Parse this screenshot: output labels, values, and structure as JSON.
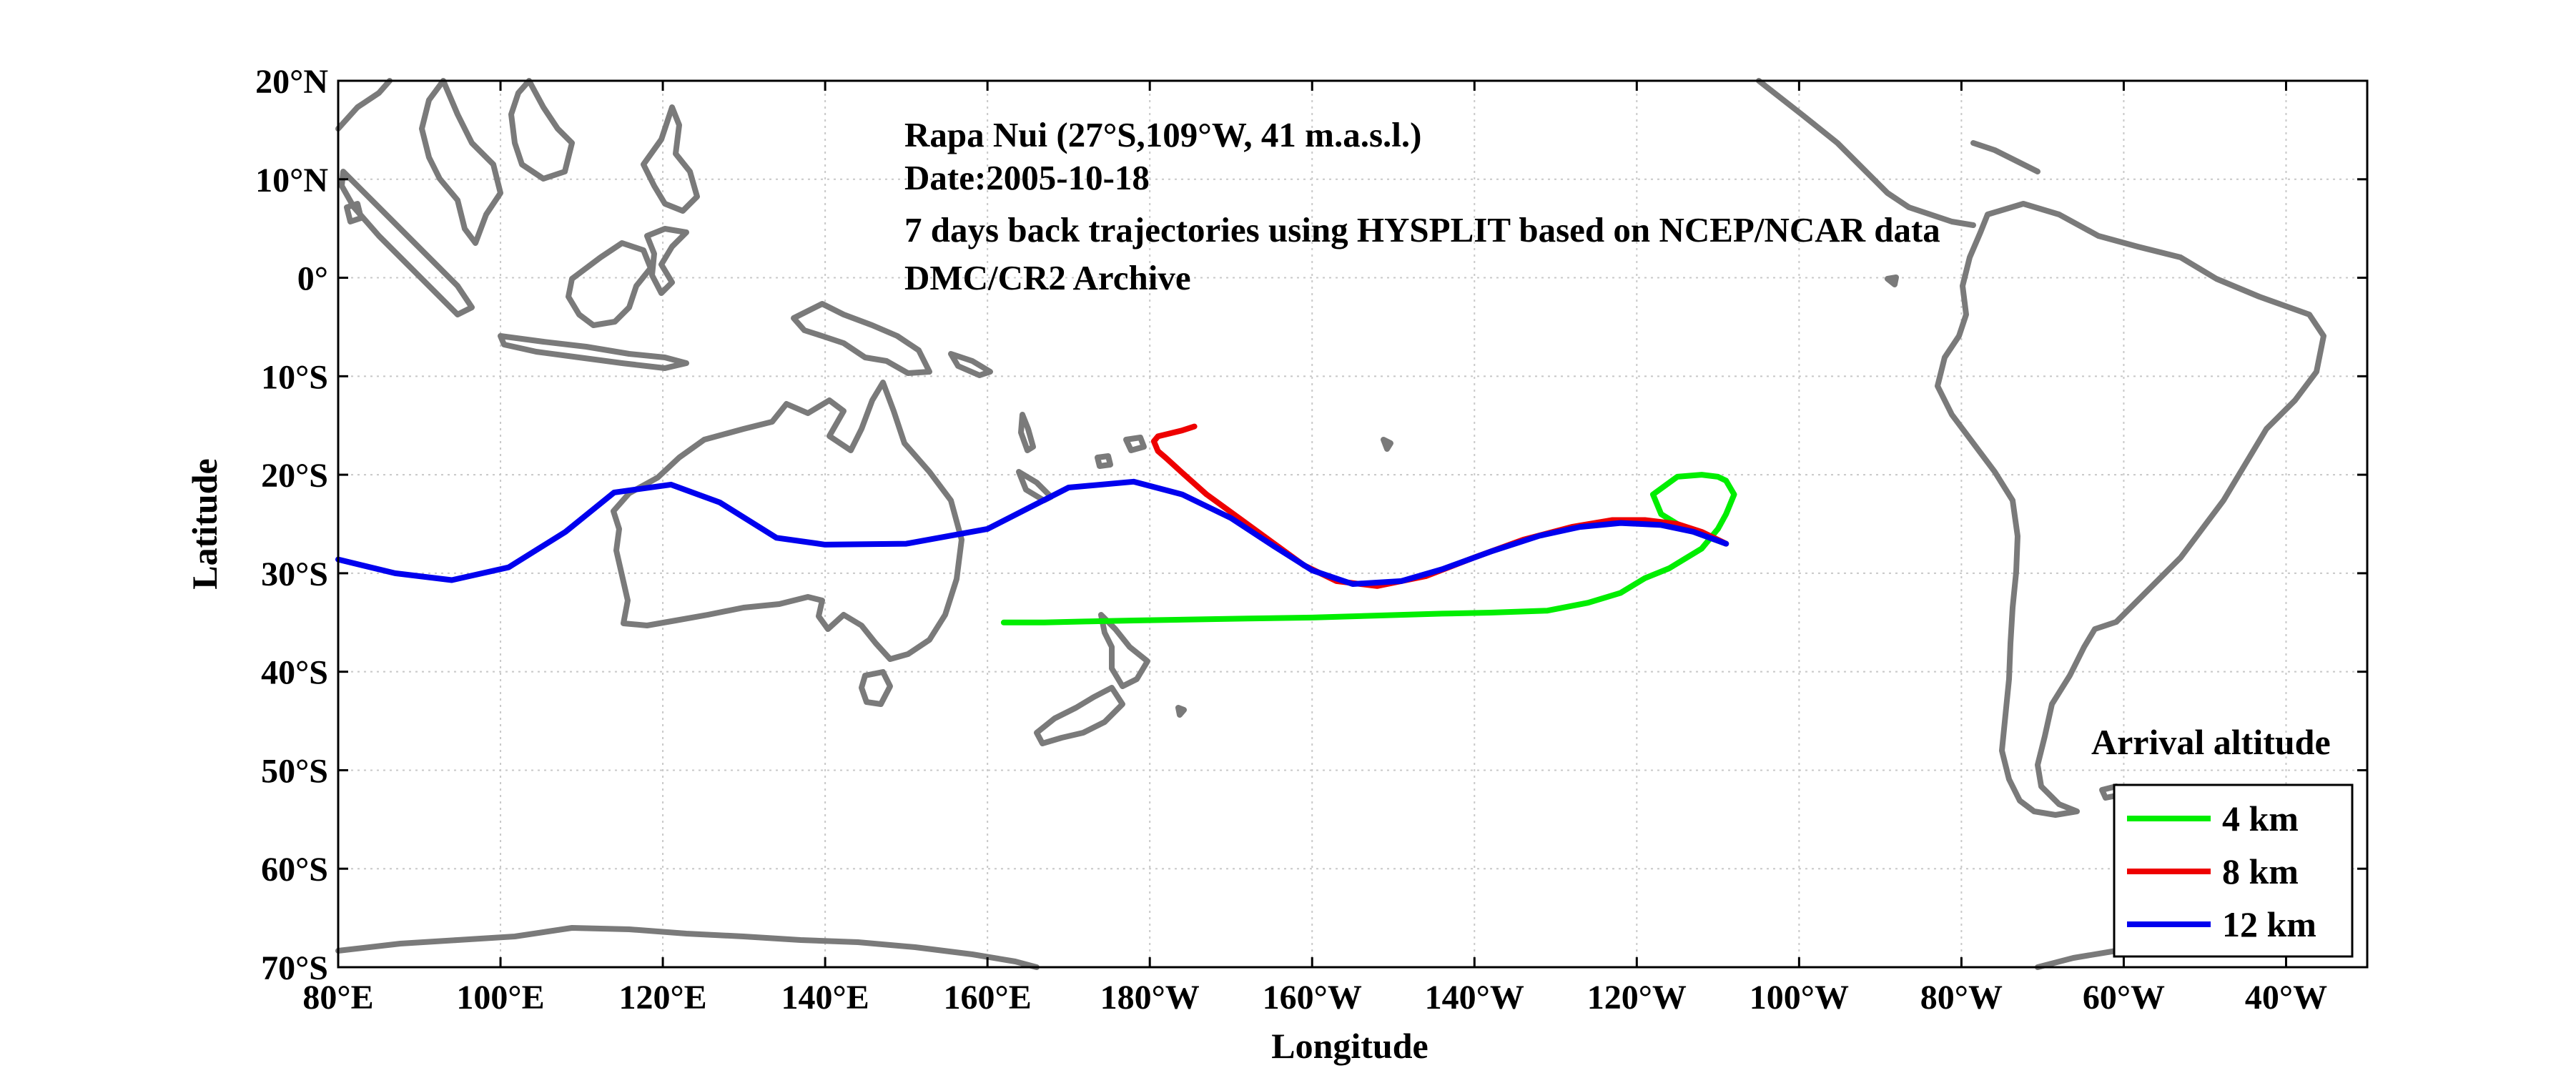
{
  "chart_data": {
    "type": "line",
    "title": "",
    "xlabel": "Longitude",
    "ylabel": "Latitude",
    "xlim": [
      80,
      330
    ],
    "ylim": [
      -70,
      20
    ],
    "grid": true,
    "x_tick_values": [
      80,
      100,
      120,
      140,
      160,
      180,
      200,
      220,
      240,
      260,
      280,
      300,
      320
    ],
    "x_tick_labels": [
      "80°E",
      "100°E",
      "120°E",
      "140°E",
      "160°E",
      "180°W",
      "160°W",
      "140°W",
      "120°W",
      "100°W",
      "80°W",
      "60°W",
      "40°W"
    ],
    "y_tick_values": [
      20,
      10,
      0,
      -10,
      -20,
      -30,
      -40,
      -50,
      -60,
      -70
    ],
    "y_tick_labels": [
      "20°N",
      "10°N",
      "0°",
      "10°S",
      "20°S",
      "30°S",
      "40°S",
      "50°S",
      "60°S",
      "70°S"
    ],
    "annotations": [
      "Rapa Nui (27°S,109°W, 41 m.a.s.l.)",
      "Date:2005-10-18",
      "7 days back trajectories using HYSPLIT based on NCEP/NCAR data",
      "DMC/CR2 Archive"
    ],
    "legend": {
      "title": "Arrival altitude",
      "placement": "bottom-right"
    },
    "series": [
      {
        "name": "4 km",
        "color": "#00ee00",
        "x": [
          251,
          246,
          243,
          242,
          245,
          248,
          250,
          251,
          252,
          251,
          250,
          249,
          248,
          246,
          244,
          241,
          238,
          234,
          229,
          222,
          216,
          208,
          200,
          192,
          185,
          178,
          172,
          167,
          162
        ],
        "y": [
          -27,
          -25.5,
          -24,
          -22,
          -20.2,
          -20,
          -20.2,
          -20.6,
          -22,
          -24,
          -25.5,
          -26.5,
          -27.5,
          -28.5,
          -29.5,
          -30.5,
          -32,
          -33,
          -33.8,
          -34,
          -34.1,
          -34.3,
          -34.5,
          -34.6,
          -34.7,
          -34.8,
          -34.9,
          -35,
          -35
        ]
      },
      {
        "name": "8 km",
        "color": "#ee0000",
        "x": [
          251,
          248,
          245,
          241,
          237,
          232,
          226,
          220,
          214,
          208,
          203,
          199,
          195,
          191,
          187,
          184,
          182,
          181,
          180.5,
          181,
          182.5,
          184,
          185.5
        ],
        "y": [
          -27,
          -25.8,
          -25,
          -24.6,
          -24.6,
          -25.3,
          -26.6,
          -28.4,
          -30.3,
          -31.3,
          -30.8,
          -29.2,
          -26.8,
          -24.4,
          -22,
          -19.8,
          -18.3,
          -17.6,
          -16.6,
          -16.1,
          -15.8,
          -15.5,
          -15.1
        ]
      },
      {
        "name": "12 km",
        "color": "#0000ee",
        "x": [
          251,
          247,
          243,
          238,
          233,
          228,
          222,
          216,
          211,
          205,
          200,
          195,
          190,
          184,
          178,
          170,
          160,
          150,
          140,
          134,
          127,
          121,
          114,
          108,
          101,
          94,
          87,
          80
        ],
        "y": [
          -27,
          -25.8,
          -25.1,
          -24.9,
          -25.3,
          -26.2,
          -27.8,
          -29.6,
          -30.8,
          -31.1,
          -29.7,
          -27.1,
          -24.4,
          -22,
          -20.7,
          -21.3,
          -25.5,
          -27,
          -27.1,
          -26.4,
          -22.8,
          -21,
          -21.8,
          -25.8,
          -29.4,
          -30.7,
          -30,
          -28.6
        ]
      }
    ]
  }
}
